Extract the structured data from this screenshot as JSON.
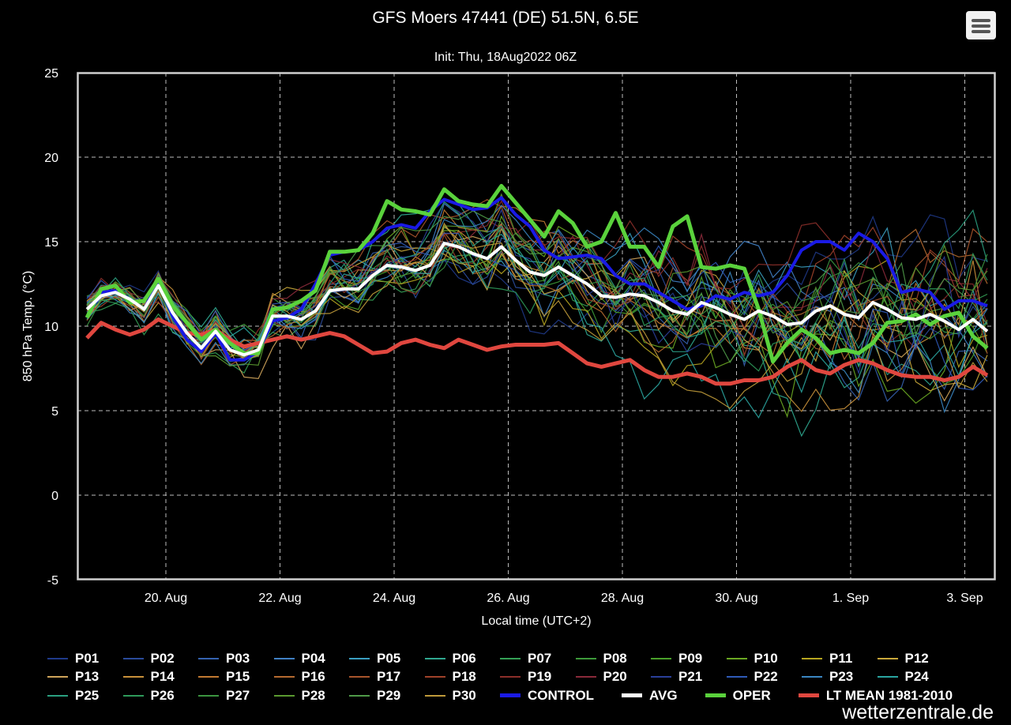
{
  "header": {
    "title": "GFS Moers 47441 (DE) 51.5N, 6.5E",
    "subtitle": "Init: Thu, 18Aug2022 06Z"
  },
  "menu": {
    "icon": "hamburger-menu-icon"
  },
  "watermark": "wetterzentrale.de",
  "chart_data": {
    "type": "line",
    "title": "GFS Moers 47441 (DE) 51.5N, 6.5E",
    "subtitle": "Init: Thu, 18Aug2022 06Z",
    "xlabel": "Local time (UTC+2)",
    "ylabel": "850 hPa Temp. (°C)",
    "ylim": [
      -5,
      25
    ],
    "yticks": [
      "-5",
      "0",
      "5",
      "10",
      "15",
      "20",
      "25"
    ],
    "xticks": [
      "20. Aug",
      "22. Aug",
      "24. Aug",
      "26. Aug",
      "28. Aug",
      "30. Aug",
      "1. Sep",
      "3. Sep"
    ],
    "grid": true,
    "legend_position": "bottom",
    "x_days_start": "18 Aug 12:00",
    "x_step_hours": 6,
    "members": [
      "P01",
      "P02",
      "P03",
      "P04",
      "P05",
      "P06",
      "P07",
      "P08",
      "P09",
      "P10",
      "P11",
      "P12",
      "P13",
      "P14",
      "P15",
      "P16",
      "P17",
      "P18",
      "P19",
      "P20",
      "P21",
      "P22",
      "P23",
      "P24",
      "P25",
      "P26",
      "P27",
      "P28",
      "P29",
      "P30"
    ],
    "member_colors": [
      "#1f3a8a",
      "#2a4b9b",
      "#3562b0",
      "#4080c4",
      "#3a9ec0",
      "#2fa890",
      "#34a055",
      "#3d9a3a",
      "#4aa02a",
      "#6aa822",
      "#b7a520",
      "#c9a83a",
      "#cfa45a",
      "#c8903a",
      "#c27a32",
      "#b56a30",
      "#a8552c",
      "#a0422a",
      "#8c2f2a",
      "#8a2a3a",
      "#2a3f9a",
      "#2f5ab8",
      "#3a86c2",
      "#2aa5a0",
      "#2aa080",
      "#2e9a5a",
      "#3b9440",
      "#5a9a30",
      "#4f9a48",
      "#bf9a3a"
    ],
    "x_count": 64,
    "series": [
      {
        "name": "CONTROL",
        "color": "#1a1ae6",
        "width": 4,
        "values": [
          10.5,
          12.0,
          12.1,
          11.6,
          11.0,
          12.6,
          10.6,
          9.2,
          8.5,
          9.6,
          8.0,
          8.0,
          8.5,
          10.3,
          10.5,
          11.0,
          12.5,
          14.2,
          14.4,
          14.5,
          15.0,
          15.8,
          16.0,
          15.8,
          16.8,
          17.5,
          17.2,
          16.9,
          17.0,
          17.6,
          16.6,
          15.9,
          14.5,
          14.0,
          14.1,
          14.2,
          14.0,
          13.0,
          12.5,
          12.5,
          12.0,
          11.5,
          11.0,
          11.2,
          11.8,
          11.6,
          12.0,
          11.8,
          12.0,
          13.0,
          14.5,
          15.0,
          15.0,
          14.5,
          15.5,
          15.0,
          14.0,
          12.0,
          12.2,
          12.0,
          11.0,
          11.5,
          11.5,
          11.2
        ]
      },
      {
        "name": "AVG",
        "color": "#ffffff",
        "width": 4,
        "values": [
          11.0,
          11.8,
          12.0,
          11.6,
          11.0,
          12.4,
          10.8,
          9.6,
          8.7,
          9.7,
          8.6,
          8.3,
          8.6,
          10.6,
          10.6,
          10.4,
          10.9,
          12.1,
          12.2,
          12.2,
          13.0,
          13.6,
          13.5,
          13.3,
          13.6,
          14.9,
          14.7,
          14.3,
          14.0,
          14.7,
          13.9,
          13.2,
          13.0,
          13.5,
          13.0,
          12.5,
          11.8,
          11.7,
          11.9,
          11.8,
          11.4,
          10.9,
          10.7,
          11.4,
          11.1,
          10.7,
          10.4,
          10.9,
          10.6,
          10.1,
          10.2,
          10.9,
          11.2,
          10.7,
          10.5,
          11.4,
          11.0,
          10.5,
          10.4,
          10.7,
          10.3,
          9.8,
          10.4,
          9.7
        ]
      },
      {
        "name": "OPER",
        "color": "#5ad23c",
        "width": 5,
        "values": [
          10.5,
          12.2,
          12.4,
          11.4,
          11.5,
          12.8,
          11.2,
          10.2,
          9.2,
          9.8,
          9.0,
          8.4,
          8.4,
          11.0,
          11.1,
          11.5,
          12.1,
          14.4,
          14.4,
          14.5,
          15.5,
          17.4,
          16.9,
          16.8,
          16.6,
          18.1,
          17.4,
          17.2,
          17.1,
          18.3,
          17.3,
          16.3,
          15.3,
          16.8,
          16.1,
          14.7,
          15.0,
          16.7,
          14.7,
          14.7,
          13.5,
          15.9,
          16.5,
          13.5,
          13.4,
          13.6,
          13.4,
          11.0,
          7.9,
          9.0,
          9.8,
          9.3,
          8.4,
          8.6,
          8.4,
          9.0,
          10.2,
          10.3,
          10.7,
          10.1,
          10.6,
          10.8,
          9.4,
          8.7
        ]
      },
      {
        "name": "LT MEAN 1981-2010",
        "color": "#e0473f",
        "width": 5,
        "values": [
          9.3,
          10.2,
          9.8,
          9.5,
          9.8,
          10.4,
          10.0,
          9.6,
          9.5,
          9.8,
          9.2,
          8.8,
          9.0,
          9.2,
          9.4,
          9.2,
          9.4,
          9.6,
          9.4,
          8.9,
          8.4,
          8.5,
          9.0,
          9.2,
          8.9,
          8.7,
          9.2,
          8.9,
          8.6,
          8.8,
          8.9,
          8.9,
          8.9,
          9.0,
          8.4,
          7.8,
          7.6,
          7.8,
          8.0,
          7.4,
          7.0,
          7.0,
          7.2,
          7.0,
          6.6,
          6.6,
          6.8,
          6.8,
          7.0,
          7.6,
          8.0,
          7.4,
          7.2,
          7.7,
          8.0,
          7.8,
          7.4,
          7.1,
          7.0,
          7.0,
          6.8,
          7.0,
          7.6,
          7.1
        ]
      }
    ]
  },
  "legend": {
    "rows": [
      [
        "P01",
        "P02",
        "P03",
        "P04",
        "P05",
        "P06",
        "P07",
        "P08",
        "P09",
        "P10",
        "P11",
        "P12"
      ],
      [
        "P13",
        "P14",
        "P15",
        "P16",
        "P17",
        "P18",
        "P19",
        "P20",
        "P21",
        "P22",
        "P23",
        "P24"
      ],
      [
        "P25",
        "P26",
        "P27",
        "P28",
        "P29",
        "P30"
      ]
    ],
    "extras": [
      {
        "label": "CONTROL",
        "color": "#1a1ae6"
      },
      {
        "label": "AVG",
        "color": "#ffffff"
      },
      {
        "label": "OPER",
        "color": "#5ad23c"
      },
      {
        "label": "LT MEAN 1981-2010",
        "color": "#e0473f"
      }
    ]
  }
}
